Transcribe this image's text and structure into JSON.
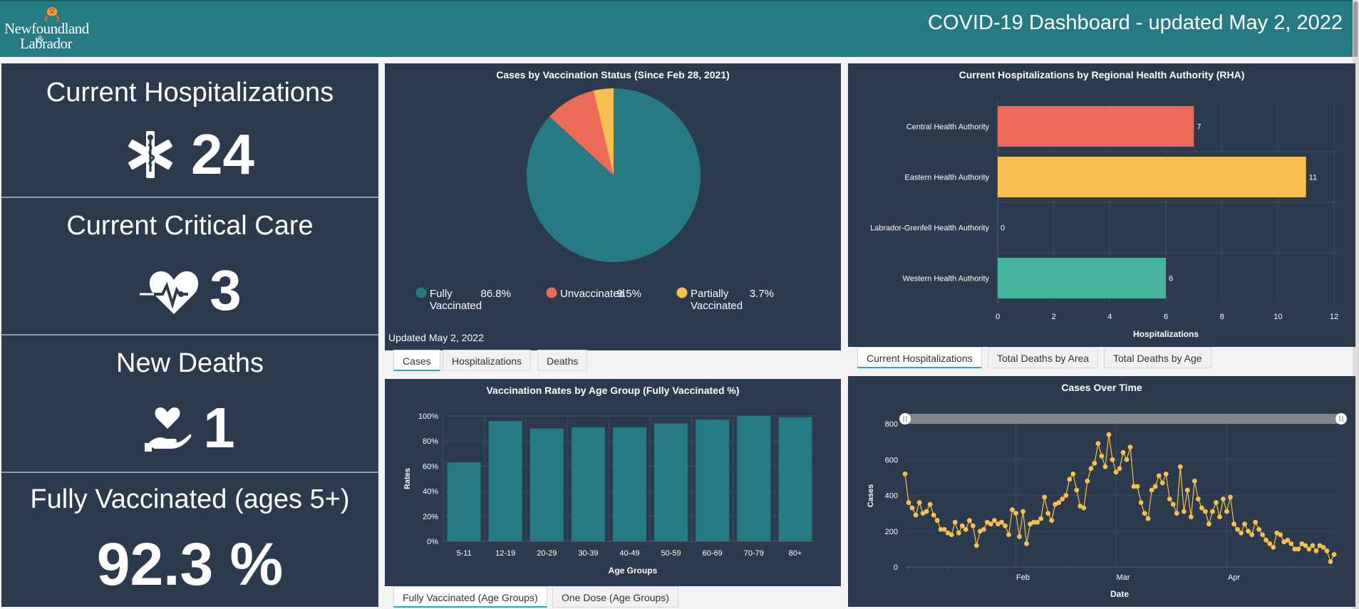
{
  "header": {
    "logo_line1": "Newfoundland",
    "logo_amp": "&",
    "logo_line2": "Labrador",
    "title": "COVID-19 Dashboard - updated May 2, 2022",
    "bg_color": "#267b82"
  },
  "kpis": {
    "hospitalizations": {
      "title": "Current Hospitalizations",
      "value": "24",
      "icon": "star-of-life-icon"
    },
    "critical_care": {
      "title": "Current Critical Care",
      "value": "3",
      "icon": "heart-pulse-icon"
    },
    "deaths": {
      "title": "New Deaths",
      "value": "1",
      "icon": "hand-heart-icon"
    },
    "vaccinated": {
      "title": "Fully Vaccinated (ages 5+)",
      "value": "92.3 %"
    }
  },
  "pie_panel": {
    "updated": "Updated May 2, 2022",
    "tabs": [
      "Cases",
      "Hospitalizations",
      "Deaths"
    ],
    "active_tab": 0
  },
  "rha_panel": {
    "tabs": [
      "Current Hospitalizations",
      "Total Deaths by Area",
      "Total Deaths by Age"
    ],
    "active_tab": 0
  },
  "age_panel": {
    "tabs": [
      "Fully Vaccinated (Age Groups)",
      "One Dose (Age Groups)"
    ],
    "active_tab": 0
  },
  "chart_data": [
    {
      "type": "pie",
      "title": "Cases by Vaccination Status (Since Feb 28, 2021)",
      "slices": [
        {
          "label": "Fully Vaccinated",
          "value": 86.8,
          "pct_label": "86.8%",
          "color": "#267b82"
        },
        {
          "label": "Unvaccinated",
          "value": 9.5,
          "pct_label": "9.5%",
          "color": "#ec6a58"
        },
        {
          "label": "Partially Vaccinated",
          "value": 3.7,
          "pct_label": "3.7%",
          "color": "#f8bf4f"
        }
      ],
      "legend": "bottom"
    },
    {
      "type": "bar",
      "orientation": "horizontal",
      "title": "Current Hospitalizations by Regional Health Authority (RHA)",
      "categories": [
        "Central Health Authority",
        "Eastern Health Authority",
        "Labrador-Grenfell Health Authority",
        "Western Health Authority"
      ],
      "values": [
        7,
        11,
        0,
        6
      ],
      "colors": [
        "#ec6a58",
        "#f8bf4f",
        "#2b3a4c",
        "#47b39c"
      ],
      "xlabel": "Hospitalizations",
      "xlim": [
        0,
        12
      ],
      "xticks": [
        "0",
        "2",
        "4",
        "6",
        "8",
        "10",
        "12"
      ]
    },
    {
      "type": "bar",
      "title": "Vaccination Rates by Age Group (Fully Vaccinated %)",
      "categories": [
        "5-11",
        "12-19",
        "20-29",
        "30-39",
        "40-49",
        "50-59",
        "60-69",
        "70-79",
        "80+"
      ],
      "values": [
        63,
        96,
        90,
        91,
        91,
        94,
        97,
        100,
        99
      ],
      "color": "#267b82",
      "xlabel": "Age Groups",
      "ylabel": "Rates",
      "ylim": [
        0,
        100
      ],
      "yticks": [
        "0%",
        "20%",
        "40%",
        "60%",
        "80%",
        "100%"
      ]
    },
    {
      "type": "line",
      "title": "Cases Over Time",
      "xlabel": "Date",
      "ylabel": "Cases",
      "ylim": [
        0,
        800
      ],
      "yticks": [
        "0",
        "200",
        "400",
        "600",
        "800"
      ],
      "x_month_labels": [
        {
          "label": "Feb",
          "day_index": 31
        },
        {
          "label": "Mar",
          "day_index": 59
        },
        {
          "label": "Apr",
          "day_index": 90
        }
      ],
      "color": "#f8bf4f",
      "values": [
        520,
        360,
        330,
        290,
        360,
        300,
        310,
        350,
        290,
        260,
        210,
        210,
        190,
        180,
        250,
        190,
        230,
        210,
        260,
        230,
        120,
        200,
        210,
        250,
        240,
        260,
        240,
        250,
        230,
        180,
        320,
        300,
        170,
        310,
        130,
        240,
        250,
        250,
        270,
        390,
        300,
        260,
        350,
        360,
        380,
        400,
        490,
        520,
        430,
        340,
        330,
        480,
        550,
        580,
        690,
        620,
        560,
        740,
        600,
        530,
        550,
        640,
        600,
        670,
        450,
        450,
        360,
        300,
        270,
        430,
        450,
        510,
        470,
        520,
        380,
        350,
        300,
        560,
        310,
        430,
        280,
        480,
        380,
        330,
        310,
        240,
        310,
        360,
        280,
        380,
        310,
        390,
        240,
        210,
        190,
        240,
        200,
        180,
        250,
        210,
        180,
        150,
        130,
        110,
        190,
        180,
        140,
        150,
        130,
        100,
        100,
        130,
        120,
        100,
        120,
        90,
        120,
        110,
        90,
        30,
        70
      ]
    }
  ]
}
